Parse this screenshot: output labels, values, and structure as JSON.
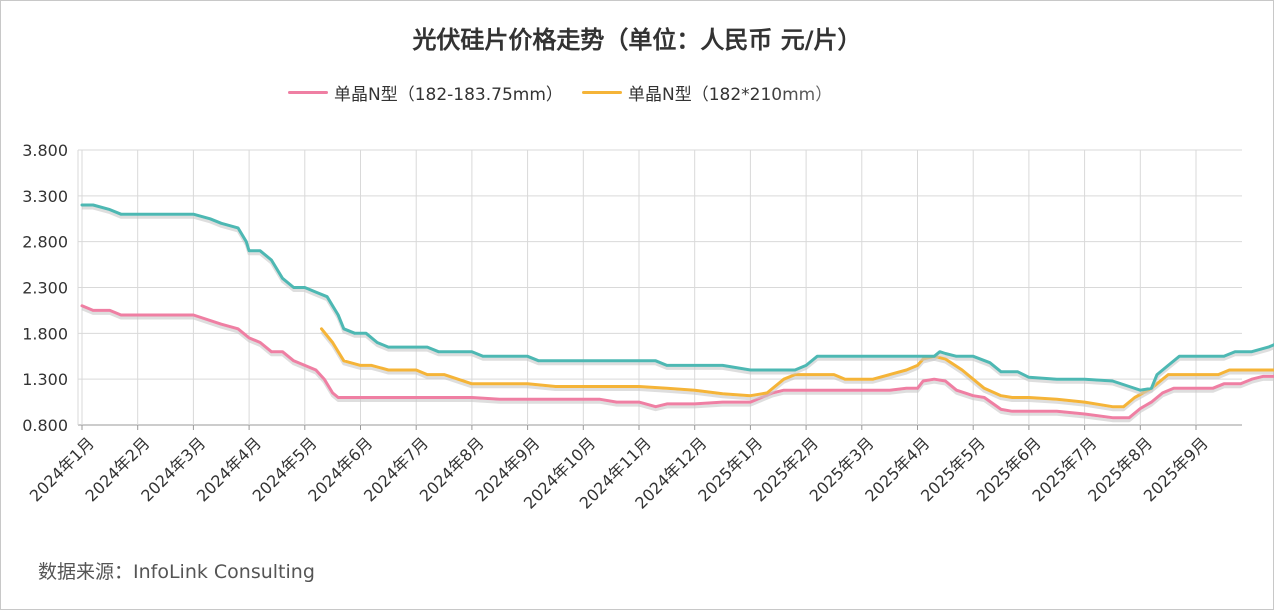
{
  "chart_data": {
    "type": "line",
    "title": "光伏硅片价格走势（单位：人民币 元/片）",
    "source": "数据来源：InfoLink Consulting",
    "categories": [
      "2024年1月",
      "2024年2月",
      "2024年3月",
      "2024年4月",
      "2024年5月",
      "2024年6月",
      "2024年7月",
      "2024年8月",
      "2024年9月",
      "2024年10月",
      "2024年11月",
      "2024年12月",
      "2025年1月",
      "2025年2月",
      "2025年3月",
      "2025年4月",
      "2025年5月",
      "2025年6月",
      "2025年7月",
      "2025年8月",
      "2025年9月"
    ],
    "ylim": [
      0.8,
      3.8
    ],
    "yticks": [
      "3.800",
      "3.300",
      "2.800",
      "2.300",
      "1.800",
      "1.300",
      "0.800"
    ],
    "grid": true,
    "legend_position": "top",
    "series": [
      {
        "name": "单晶N型（182-183.75mm）",
        "color": "#ef7fa3",
        "points": [
          [
            0.0,
            2.1
          ],
          [
            0.2,
            2.05
          ],
          [
            0.5,
            2.05
          ],
          [
            0.7,
            2.0
          ],
          [
            1.0,
            2.0
          ],
          [
            1.5,
            2.0
          ],
          [
            2.0,
            2.0
          ],
          [
            2.5,
            1.9
          ],
          [
            2.8,
            1.85
          ],
          [
            3.0,
            1.75
          ],
          [
            3.2,
            1.7
          ],
          [
            3.4,
            1.6
          ],
          [
            3.6,
            1.6
          ],
          [
            3.8,
            1.5
          ],
          [
            4.0,
            1.45
          ],
          [
            4.2,
            1.4
          ],
          [
            4.35,
            1.3
          ],
          [
            4.5,
            1.15
          ],
          [
            4.6,
            1.1
          ],
          [
            5.0,
            1.1
          ],
          [
            6.0,
            1.1
          ],
          [
            7.0,
            1.1
          ],
          [
            7.5,
            1.08
          ],
          [
            8.0,
            1.08
          ],
          [
            9.0,
            1.08
          ],
          [
            9.3,
            1.08
          ],
          [
            9.6,
            1.05
          ],
          [
            10.0,
            1.05
          ],
          [
            10.3,
            1.0
          ],
          [
            10.5,
            1.03
          ],
          [
            11.0,
            1.03
          ],
          [
            11.5,
            1.05
          ],
          [
            12.0,
            1.05
          ],
          [
            12.4,
            1.15
          ],
          [
            12.6,
            1.18
          ],
          [
            13.0,
            1.18
          ],
          [
            14.0,
            1.18
          ],
          [
            14.5,
            1.18
          ],
          [
            14.8,
            1.2
          ],
          [
            15.0,
            1.2
          ],
          [
            15.1,
            1.28
          ],
          [
            15.3,
            1.3
          ],
          [
            15.5,
            1.28
          ],
          [
            15.7,
            1.18
          ],
          [
            16.0,
            1.12
          ],
          [
            16.2,
            1.1
          ],
          [
            16.5,
            0.97
          ],
          [
            16.7,
            0.95
          ],
          [
            17.0,
            0.95
          ],
          [
            17.5,
            0.95
          ],
          [
            18.0,
            0.92
          ],
          [
            18.5,
            0.88
          ],
          [
            18.8,
            0.88
          ],
          [
            19.0,
            0.98
          ],
          [
            19.2,
            1.05
          ],
          [
            19.4,
            1.15
          ],
          [
            19.6,
            1.2
          ],
          [
            20.0,
            1.2
          ],
          [
            20.3,
            1.2
          ],
          [
            20.5,
            1.25
          ],
          [
            20.8,
            1.25
          ],
          [
            21.0,
            1.3
          ],
          [
            21.2,
            1.33
          ],
          [
            21.5,
            1.33
          ]
        ]
      },
      {
        "name": "单晶N型（182*210mm）",
        "color": "#f5b438",
        "points": [
          [
            4.3,
            1.85
          ],
          [
            4.5,
            1.7
          ],
          [
            4.7,
            1.5
          ],
          [
            5.0,
            1.45
          ],
          [
            5.2,
            1.45
          ],
          [
            5.5,
            1.4
          ],
          [
            6.0,
            1.4
          ],
          [
            6.2,
            1.35
          ],
          [
            6.5,
            1.35
          ],
          [
            7.0,
            1.25
          ],
          [
            8.0,
            1.25
          ],
          [
            8.5,
            1.22
          ],
          [
            9.0,
            1.22
          ],
          [
            10.0,
            1.22
          ],
          [
            10.5,
            1.2
          ],
          [
            11.0,
            1.18
          ],
          [
            11.5,
            1.14
          ],
          [
            12.0,
            1.12
          ],
          [
            12.3,
            1.15
          ],
          [
            12.6,
            1.3
          ],
          [
            12.8,
            1.35
          ],
          [
            13.0,
            1.35
          ],
          [
            13.5,
            1.35
          ],
          [
            13.7,
            1.3
          ],
          [
            14.0,
            1.3
          ],
          [
            14.2,
            1.3
          ],
          [
            14.5,
            1.35
          ],
          [
            14.8,
            1.4
          ],
          [
            15.0,
            1.45
          ],
          [
            15.1,
            1.52
          ],
          [
            15.3,
            1.55
          ],
          [
            15.5,
            1.52
          ],
          [
            15.8,
            1.4
          ],
          [
            16.0,
            1.3
          ],
          [
            16.2,
            1.2
          ],
          [
            16.5,
            1.12
          ],
          [
            16.7,
            1.1
          ],
          [
            17.0,
            1.1
          ],
          [
            17.5,
            1.08
          ],
          [
            18.0,
            1.05
          ],
          [
            18.5,
            1.0
          ],
          [
            18.7,
            1.0
          ],
          [
            18.9,
            1.1
          ],
          [
            19.2,
            1.2
          ],
          [
            19.5,
            1.35
          ],
          [
            20.0,
            1.35
          ],
          [
            20.4,
            1.35
          ],
          [
            20.6,
            1.4
          ],
          [
            21.0,
            1.4
          ],
          [
            21.5,
            1.4
          ]
        ]
      },
      {
        "name": "",
        "color": "#4db8b3",
        "points": [
          [
            0.0,
            3.2
          ],
          [
            0.2,
            3.2
          ],
          [
            0.5,
            3.15
          ],
          [
            0.7,
            3.1
          ],
          [
            1.0,
            3.1
          ],
          [
            1.5,
            3.1
          ],
          [
            2.0,
            3.1
          ],
          [
            2.3,
            3.05
          ],
          [
            2.5,
            3.0
          ],
          [
            2.8,
            2.95
          ],
          [
            2.95,
            2.8
          ],
          [
            3.0,
            2.7
          ],
          [
            3.2,
            2.7
          ],
          [
            3.4,
            2.6
          ],
          [
            3.6,
            2.4
          ],
          [
            3.8,
            2.3
          ],
          [
            4.0,
            2.3
          ],
          [
            4.2,
            2.25
          ],
          [
            4.4,
            2.2
          ],
          [
            4.5,
            2.1
          ],
          [
            4.6,
            2.0
          ],
          [
            4.7,
            1.85
          ],
          [
            4.9,
            1.8
          ],
          [
            5.1,
            1.8
          ],
          [
            5.3,
            1.7
          ],
          [
            5.5,
            1.65
          ],
          [
            6.0,
            1.65
          ],
          [
            6.2,
            1.65
          ],
          [
            6.4,
            1.6
          ],
          [
            6.8,
            1.6
          ],
          [
            7.0,
            1.6
          ],
          [
            7.2,
            1.55
          ],
          [
            7.5,
            1.55
          ],
          [
            8.0,
            1.55
          ],
          [
            8.2,
            1.5
          ],
          [
            8.5,
            1.5
          ],
          [
            9.0,
            1.5
          ],
          [
            9.5,
            1.5
          ],
          [
            10.0,
            1.5
          ],
          [
            10.3,
            1.5
          ],
          [
            10.5,
            1.45
          ],
          [
            11.0,
            1.45
          ],
          [
            11.5,
            1.45
          ],
          [
            12.0,
            1.4
          ],
          [
            12.5,
            1.4
          ],
          [
            12.8,
            1.4
          ],
          [
            13.0,
            1.45
          ],
          [
            13.2,
            1.55
          ],
          [
            13.5,
            1.55
          ],
          [
            14.0,
            1.55
          ],
          [
            15.0,
            1.55
          ],
          [
            15.3,
            1.55
          ],
          [
            15.4,
            1.6
          ],
          [
            15.5,
            1.58
          ],
          [
            15.7,
            1.55
          ],
          [
            16.0,
            1.55
          ],
          [
            16.3,
            1.48
          ],
          [
            16.5,
            1.38
          ],
          [
            16.8,
            1.38
          ],
          [
            17.0,
            1.32
          ],
          [
            17.5,
            1.3
          ],
          [
            18.0,
            1.3
          ],
          [
            18.5,
            1.28
          ],
          [
            18.8,
            1.22
          ],
          [
            19.0,
            1.18
          ],
          [
            19.2,
            1.2
          ],
          [
            19.3,
            1.35
          ],
          [
            19.5,
            1.45
          ],
          [
            19.7,
            1.55
          ],
          [
            20.0,
            1.55
          ],
          [
            20.5,
            1.55
          ],
          [
            20.7,
            1.6
          ],
          [
            21.0,
            1.6
          ],
          [
            21.3,
            1.65
          ],
          [
            21.5,
            1.7
          ],
          [
            21.8,
            1.7
          ]
        ]
      }
    ]
  },
  "colors": {
    "grid": "#d9d9d9",
    "axis": "#999999",
    "text": "#333333",
    "line_shadow": "#c8c8c8"
  }
}
